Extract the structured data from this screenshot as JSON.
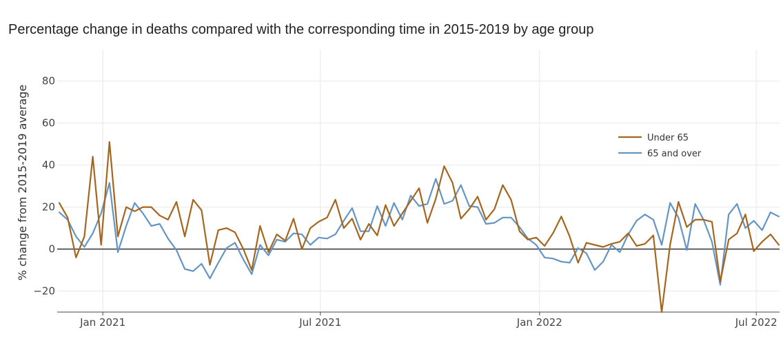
{
  "chart_data": {
    "type": "line",
    "title": "Percentage change in deaths compared with the corresponding time in 2015-2019 by age group",
    "xlabel": "",
    "ylabel": "% change from 2015-2019 average",
    "ylim": [
      -30,
      95
    ],
    "yticks": [
      -20,
      0,
      20,
      40,
      60,
      80
    ],
    "ytick_labels": [
      "−20",
      "0",
      "20",
      "40",
      "60",
      "80"
    ],
    "xticks": [
      {
        "label": "Jan 2021",
        "week": 5.2
      },
      {
        "label": "Jul 2021",
        "week": 31.2
      },
      {
        "label": "Jan 2022",
        "week": 57.4
      },
      {
        "label": "Jul 2022",
        "week": 83.3
      }
    ],
    "x_unit": "weeks",
    "grid": true,
    "legend_position": "top-right",
    "series": [
      {
        "name": "Under 65",
        "color": "#a5651d",
        "values": [
          22,
          15,
          -4,
          6,
          44,
          2,
          51,
          6,
          20,
          18,
          20,
          20,
          16,
          14,
          22.5,
          6,
          23.5,
          18.5,
          -7.5,
          9,
          10,
          8,
          0,
          -10,
          11,
          -1.5,
          7,
          4,
          14.5,
          0,
          10,
          13,
          15,
          23.5,
          10,
          14.5,
          4.5,
          12,
          6.5,
          21,
          11,
          17,
          23,
          29,
          12.5,
          24,
          39.5,
          31.5,
          14.5,
          19,
          25,
          14,
          19,
          30.5,
          23.5,
          8.5,
          4.5,
          5.5,
          1.5,
          7.5,
          15.5,
          6,
          -6.5,
          3,
          2,
          1,
          2.5,
          3.5,
          7.5,
          1.5,
          2.5,
          6.5,
          -30,
          2,
          22.5,
          10.5,
          14,
          14,
          13,
          -15.5,
          4.5,
          7.5,
          16.5,
          -1,
          3.5,
          7,
          2
        ]
      },
      {
        "name": "65 and over",
        "color": "#6395c4",
        "values": [
          17.5,
          14,
          6,
          1,
          7.5,
          17,
          31.5,
          -1.5,
          11,
          22,
          17,
          11,
          12,
          5,
          -0.5,
          -9.5,
          -10.5,
          -7,
          -14,
          -6.5,
          0.5,
          3,
          -5,
          -12,
          2,
          -3,
          4.5,
          3.5,
          7.5,
          7,
          2,
          5.5,
          5,
          7,
          13.5,
          19.5,
          8.5,
          8.5,
          20.5,
          11,
          22,
          14,
          25.5,
          20.5,
          21.5,
          33.5,
          21.5,
          23,
          30.5,
          20.5,
          20,
          12,
          12.5,
          15,
          15,
          10.5,
          5,
          2,
          -4,
          -4.5,
          -6,
          -6.5,
          0.5,
          -2,
          -10,
          -6,
          2,
          -1.5,
          7,
          13.5,
          16.5,
          14,
          2,
          22,
          15,
          -0.5,
          21.5,
          14,
          3.5,
          -17,
          16.5,
          21.5,
          10,
          13.5,
          9,
          17.5,
          15.5
        ]
      }
    ]
  }
}
